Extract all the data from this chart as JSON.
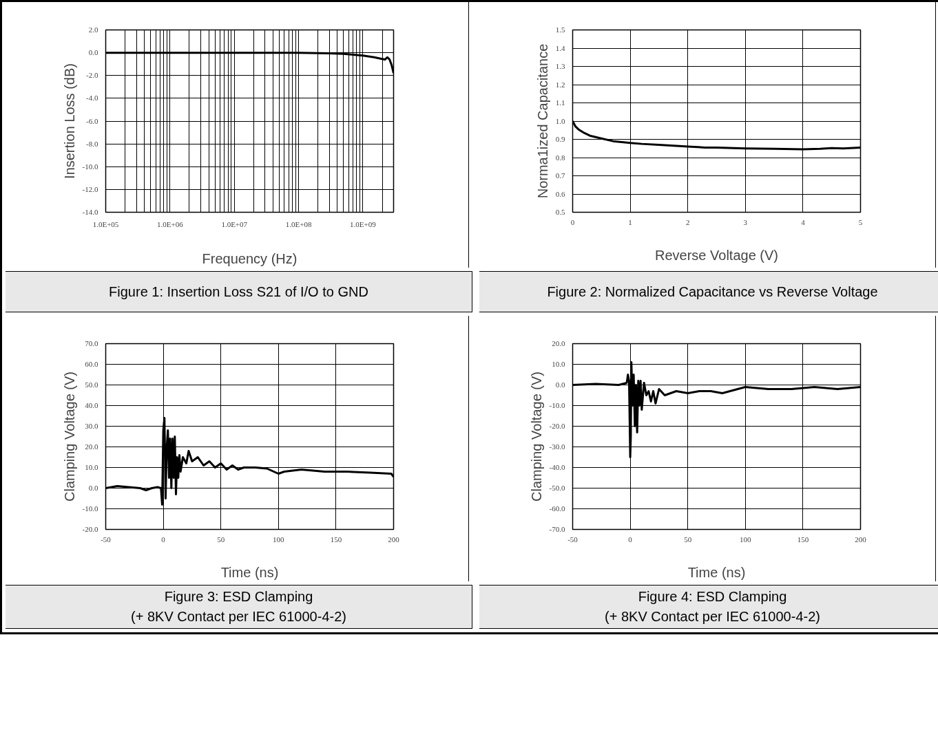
{
  "chart_data": [
    {
      "type": "line",
      "title": "Figure 1: Insertion Loss S21 of I/O to GND",
      "xlabel": "Frequency (Hz)",
      "ylabel": "Insertion Loss (dB)",
      "log": "x",
      "grid": true,
      "line_style": "solid",
      "xlim": [
        100000,
        3000000000
      ],
      "xticks": [
        {
          "value": 100000,
          "label": "1.0E+05"
        },
        {
          "value": 1000000,
          "label": "1.0E+06"
        },
        {
          "value": 10000000,
          "label": "1.0E+07"
        },
        {
          "value": 100000000,
          "label": "1.0E+08"
        },
        {
          "value": 1000000000,
          "label": "1.0E+09"
        }
      ],
      "ylim": [
        -14,
        2
      ],
      "yticks": [
        {
          "value": 2,
          "label": "2.0"
        },
        {
          "value": 0,
          "label": "0.0"
        },
        {
          "value": -2,
          "label": "-2.0"
        },
        {
          "value": -4,
          "label": "-4.0"
        },
        {
          "value": -6,
          "label": "-6.0"
        },
        {
          "value": -8,
          "label": "-8.0"
        },
        {
          "value": -10,
          "label": "-10.0"
        },
        {
          "value": -12,
          "label": "-12.0"
        },
        {
          "value": -14,
          "label": "-14.0"
        }
      ],
      "x": [
        100000,
        1000000,
        10000000,
        100000000,
        300000000,
        500000000,
        800000000,
        1000000000,
        1500000000,
        2000000000,
        2200000000,
        2400000000,
        2600000000,
        2800000000,
        3000000000
      ],
      "series": [
        {
          "color": "#000000",
          "values": [
            0,
            0,
            0,
            0,
            -0.05,
            -0.1,
            -0.2,
            -0.25,
            -0.4,
            -0.55,
            -0.6,
            -0.4,
            -0.6,
            -1.1,
            -1.8
          ]
        }
      ]
    },
    {
      "type": "line",
      "title": "Figure 2: Normalized Capacitance vs Reverse Voltage",
      "xlabel": "Reverse Voltage (V)",
      "ylabel": "Norma1ized Capacitance",
      "grid": true,
      "line_style": "solid",
      "xlim": [
        0,
        5
      ],
      "xticks": [
        0,
        1,
        2,
        3,
        4,
        5
      ],
      "ylim": [
        0.5,
        1.5
      ],
      "yticks": [
        0.5,
        0.6,
        0.7,
        0.8,
        0.9,
        {
          "value": 1,
          "label": "1.0"
        },
        1.1,
        1.2,
        1.3,
        1.4,
        1.5
      ],
      "x": [
        0,
        0.05,
        0.1,
        0.2,
        0.3,
        0.5,
        0.7,
        1,
        1.2,
        1.5,
        2,
        2.3,
        2.5,
        3,
        3.5,
        4,
        4.3,
        4.5,
        4.7,
        5
      ],
      "series": [
        {
          "color": "#000000",
          "values": [
            1.0,
            0.97,
            0.955,
            0.935,
            0.92,
            0.905,
            0.89,
            0.88,
            0.875,
            0.87,
            0.86,
            0.855,
            0.855,
            0.85,
            0.848,
            0.845,
            0.848,
            0.852,
            0.85,
            0.855
          ]
        }
      ]
    },
    {
      "type": "line",
      "title": "Figure 3: ESD Clamping",
      "subtitle": "(+ 8KV Contact per IEC 61000-4-2)",
      "xlabel": "Time (ns)",
      "ylabel": "Clamping Voltage (V)",
      "grid": true,
      "line_style": "solid",
      "xlim": [
        -50,
        200
      ],
      "xticks": [
        -50,
        0,
        50,
        100,
        150,
        200
      ],
      "ylim": [
        -20,
        70
      ],
      "yticks": [
        {
          "value": -20,
          "label": "-20.0"
        },
        {
          "value": -10,
          "label": "-10.0"
        },
        {
          "value": 0,
          "label": "0.0"
        },
        {
          "value": 10,
          "label": "10.0"
        },
        {
          "value": 20,
          "label": "20.0"
        },
        {
          "value": 30,
          "label": "30.0"
        },
        {
          "value": 40,
          "label": "40.0"
        },
        {
          "value": 50,
          "label": "50.0"
        },
        {
          "value": 60,
          "label": "60.0"
        },
        {
          "value": 70,
          "label": "70.0"
        }
      ],
      "x": [
        -50,
        -40,
        -30,
        -20,
        -15,
        -10,
        -5,
        -2,
        -1,
        0,
        1,
        2,
        3,
        4,
        5,
        6,
        7,
        8,
        9,
        10,
        11,
        12,
        13,
        14,
        15,
        17,
        20,
        22,
        25,
        30,
        35,
        40,
        45,
        50,
        55,
        60,
        65,
        70,
        80,
        90,
        100,
        105,
        120,
        140,
        160,
        180,
        198,
        200
      ],
      "series": [
        {
          "color": "#000000",
          "values": [
            0,
            1,
            0.5,
            0,
            -1,
            0,
            0.5,
            0,
            -8,
            28,
            34,
            -5,
            20,
            28,
            5,
            24,
            0,
            24,
            5,
            25,
            -3,
            15,
            5,
            16,
            8,
            15,
            12,
            18,
            13,
            15,
            11,
            13,
            10,
            12,
            9,
            11,
            9,
            10,
            10,
            9.5,
            7,
            8,
            9,
            8,
            8,
            7.5,
            7,
            5.5
          ]
        }
      ]
    },
    {
      "type": "line",
      "title": "Figure 4: ESD Clamping",
      "subtitle": "(+ 8KV Contact per IEC 61000-4-2)",
      "xlabel": "Time (ns)",
      "ylabel": "Clamping Voltage (V)",
      "grid": true,
      "line_style": "solid",
      "xlim": [
        -50,
        200
      ],
      "xticks": [
        -50,
        0,
        50,
        100,
        150,
        200
      ],
      "ylim": [
        -70,
        20
      ],
      "yticks": [
        {
          "value": -70,
          "label": "-70.0"
        },
        {
          "value": -60,
          "label": "-60.0"
        },
        {
          "value": -50,
          "label": "-50.0"
        },
        {
          "value": -40,
          "label": "-40.0"
        },
        {
          "value": -30,
          "label": "-30.0"
        },
        {
          "value": -20,
          "label": "-20.0"
        },
        {
          "value": -10,
          "label": "-10.0"
        },
        {
          "value": 0,
          "label": "0.0"
        },
        {
          "value": 10,
          "label": "10.0"
        },
        {
          "value": 20,
          "label": "20.0"
        }
      ],
      "x": [
        -50,
        -30,
        -10,
        -3,
        -2,
        -1,
        0,
        0.5,
        1,
        2,
        3,
        4,
        5,
        6,
        7,
        8,
        9,
        10,
        12,
        14,
        16,
        18,
        20,
        22,
        25,
        30,
        40,
        50,
        60,
        70,
        80,
        100,
        120,
        140,
        160,
        180,
        200
      ],
      "series": [
        {
          "color": "#000000",
          "values": [
            0,
            0.5,
            0,
            1,
            5,
            2,
            -35,
            -25,
            11,
            -10,
            5,
            -20,
            0,
            -23,
            2,
            -10,
            2,
            -12,
            1,
            -5,
            -3,
            -8,
            -3,
            -9,
            -2,
            -5,
            -3,
            -4,
            -3,
            -3,
            -4,
            -1,
            -2,
            -2,
            -1,
            -2,
            -1
          ]
        }
      ]
    }
  ]
}
